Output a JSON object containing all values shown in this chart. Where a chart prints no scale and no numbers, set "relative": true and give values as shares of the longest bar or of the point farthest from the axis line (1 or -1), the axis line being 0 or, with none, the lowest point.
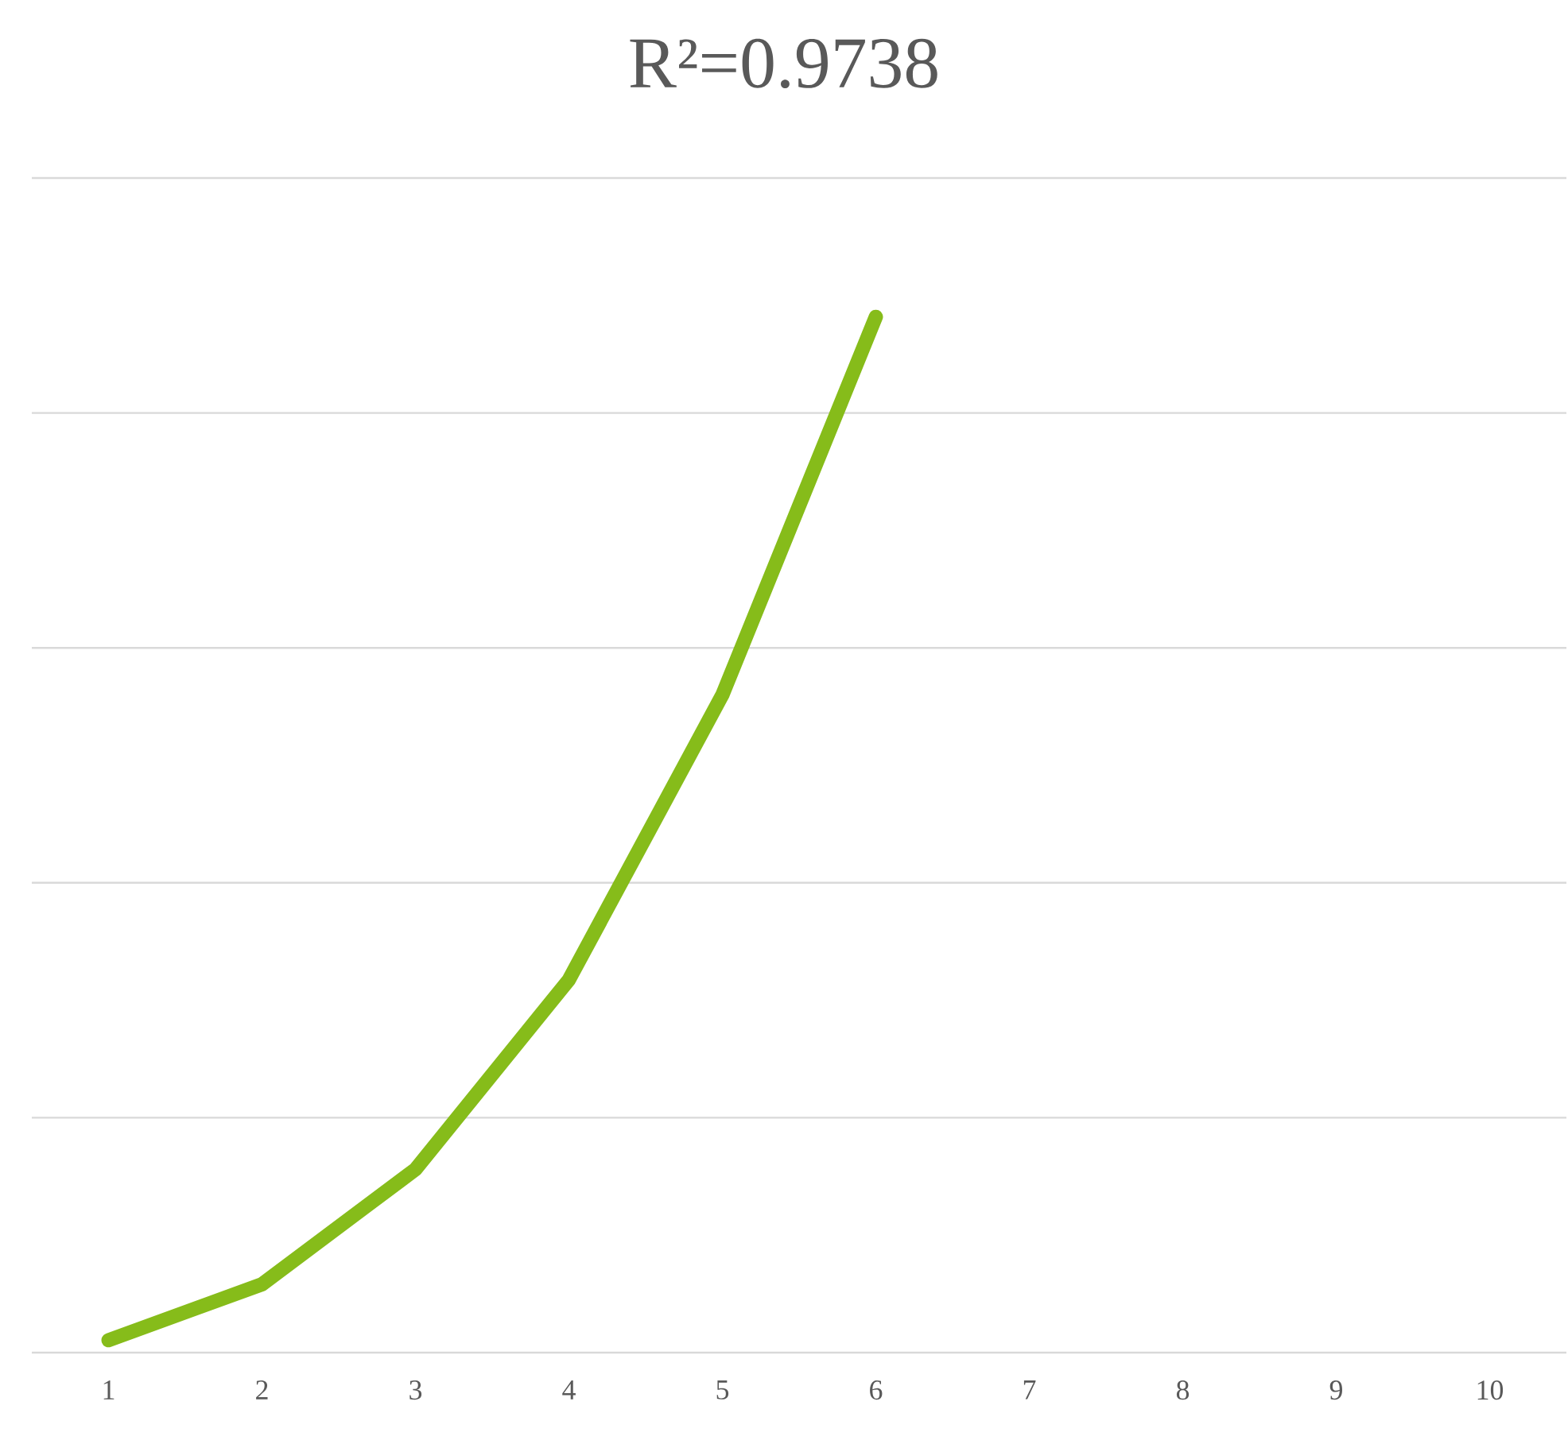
{
  "chart_data": {
    "type": "line",
    "title": "R²=0.9738",
    "categories": [
      "1",
      "2",
      "3",
      "4",
      "5",
      "6",
      "7",
      "8",
      "9",
      "10"
    ],
    "series": [
      {
        "color": "#86bc1a",
        "values": [
          0.012,
          0.066,
          0.177,
          0.36,
          0.635,
          1,
          null,
          null,
          null,
          null
        ]
      }
    ],
    "relative": true,
    "grid": "y",
    "marker": "none",
    "line_style": "solid"
  }
}
